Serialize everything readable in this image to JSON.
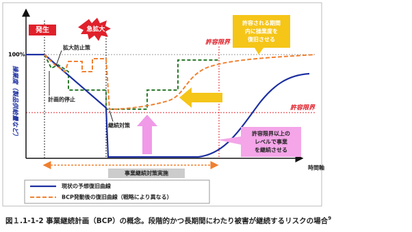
{
  "diagram": {
    "occurrence": "発生",
    "escalation": "急拡大",
    "level_100": "100%",
    "y_axis_label": "操業度（製品供給量など）",
    "x_axis_label": "時間軸",
    "expansion_prevention": "拡大防止策",
    "planned_stop": "計画的停止",
    "continuity_measures": "継続対策",
    "tolerance_limit_time": "許容限界",
    "tolerance_limit_level": "許容限界",
    "yellow_callout": [
      "許容される期間",
      "内に操業度を",
      "復旧させる"
    ],
    "pink_callout": [
      "許容限界以上の",
      "レベルで事業",
      "を継続させる"
    ],
    "implementation": "事業継続対策実施",
    "legend": [
      "現状の予想復旧曲線",
      "BCP発動後の復旧曲線（戦略により異なる）"
    ],
    "caption": "図１.1-1-2 事業継続計画（BCP）の概念。段階的かつ長期間にわたり被害が継続するリスクの場合",
    "caption_note": "9"
  }
}
